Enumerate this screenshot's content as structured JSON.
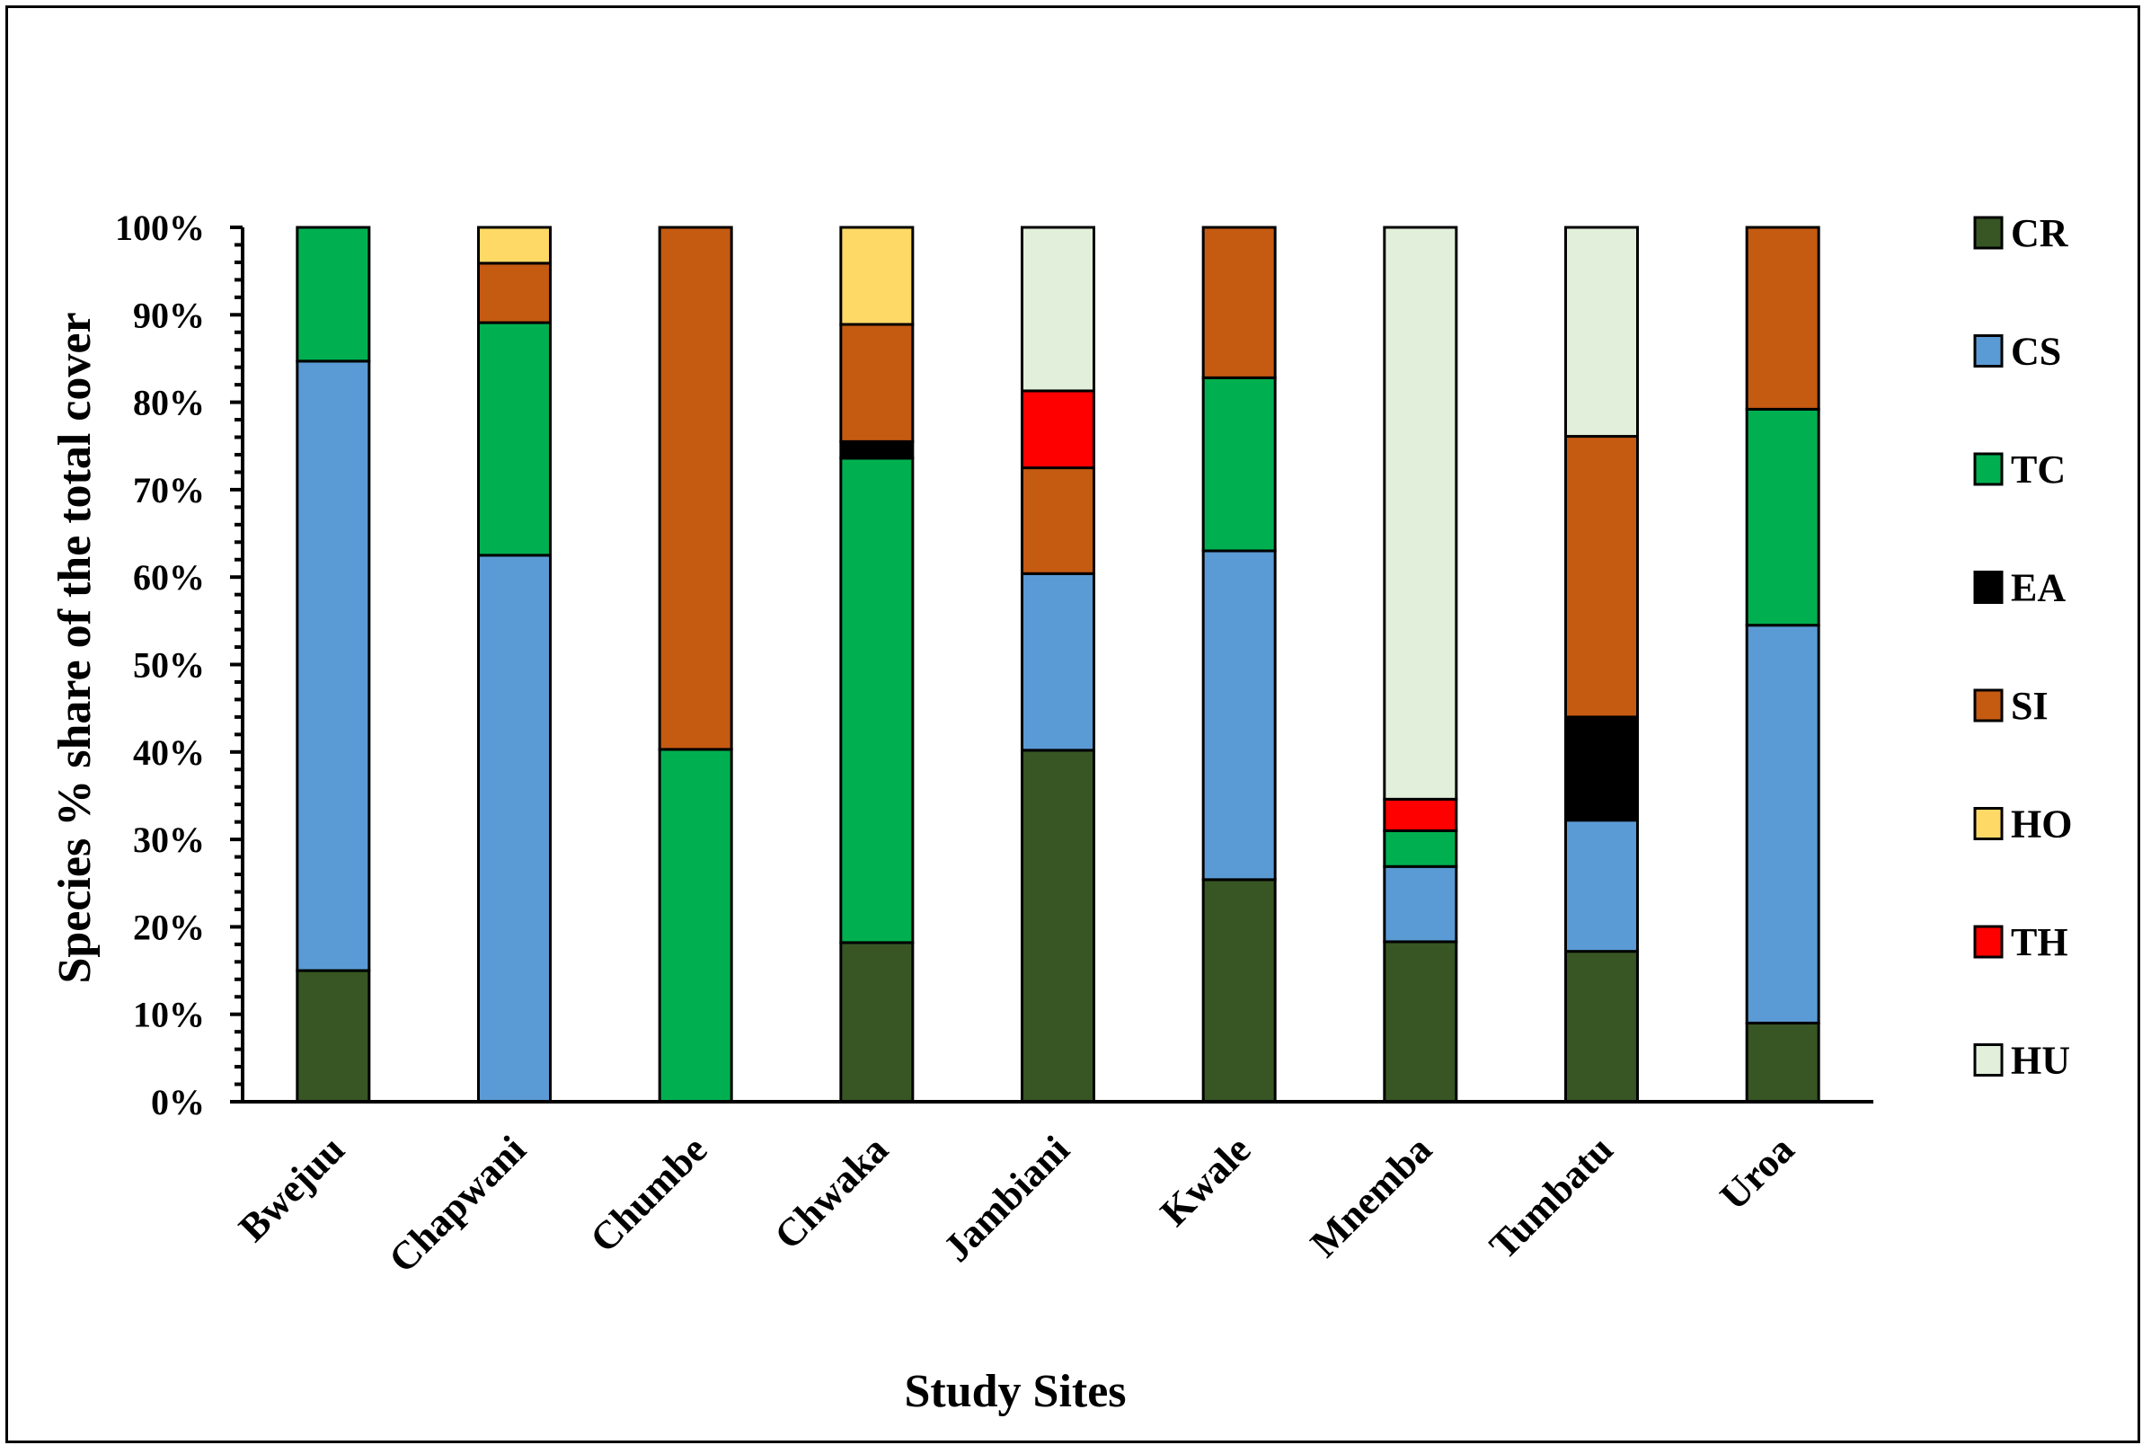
{
  "chart_data": {
    "type": "bar",
    "stacked": true,
    "percent": true,
    "title": "",
    "xlabel": "Study Sites",
    "ylabel": "Species % share of the total cover",
    "ylim": [
      0,
      100
    ],
    "yticks": [
      "0%",
      "10%",
      "20%",
      "30%",
      "40%",
      "50%",
      "60%",
      "70%",
      "80%",
      "90%",
      "100%"
    ],
    "legend_position": "right",
    "categories": [
      "Bwejuu",
      "Chapwani",
      "Chumbe",
      "Chwaka",
      "Jambiani",
      "Kwale",
      "Mnemba",
      "Tumbatu",
      "Uroa"
    ],
    "series": [
      {
        "name": "CR",
        "color": "#375623",
        "values": [
          15,
          0,
          0,
          18.2,
          40.2,
          25.4,
          18.3,
          17.2,
          9
        ]
      },
      {
        "name": "CS",
        "color": "#5B9BD5",
        "values": [
          69.7,
          62.5,
          0,
          0,
          20.2,
          37.6,
          8.6,
          15,
          45.5
        ]
      },
      {
        "name": "TC",
        "color": "#00B050",
        "values": [
          15.3,
          26.6,
          40.3,
          55.4,
          0,
          19.8,
          4.1,
          0,
          24.7
        ]
      },
      {
        "name": "EA",
        "color": "#000000",
        "values": [
          0,
          0,
          0,
          1.9,
          0,
          0,
          0,
          11.8,
          0
        ]
      },
      {
        "name": "SI",
        "color": "#C55A11",
        "values": [
          0,
          6.8,
          59.7,
          13.4,
          12.1,
          17.2,
          0,
          32.1,
          20.8
        ]
      },
      {
        "name": "HO",
        "color": "#FFD966",
        "values": [
          0,
          4.1,
          0,
          11.1,
          0,
          0,
          0,
          0,
          0
        ]
      },
      {
        "name": "TH",
        "color": "#FF0000",
        "values": [
          0,
          0,
          0,
          0,
          8.8,
          0,
          3.6,
          0,
          0
        ]
      },
      {
        "name": "HU",
        "color": "#E2EFDA",
        "values": [
          0,
          0,
          0,
          0,
          18.7,
          0,
          65.4,
          23.9,
          0
        ]
      }
    ]
  }
}
